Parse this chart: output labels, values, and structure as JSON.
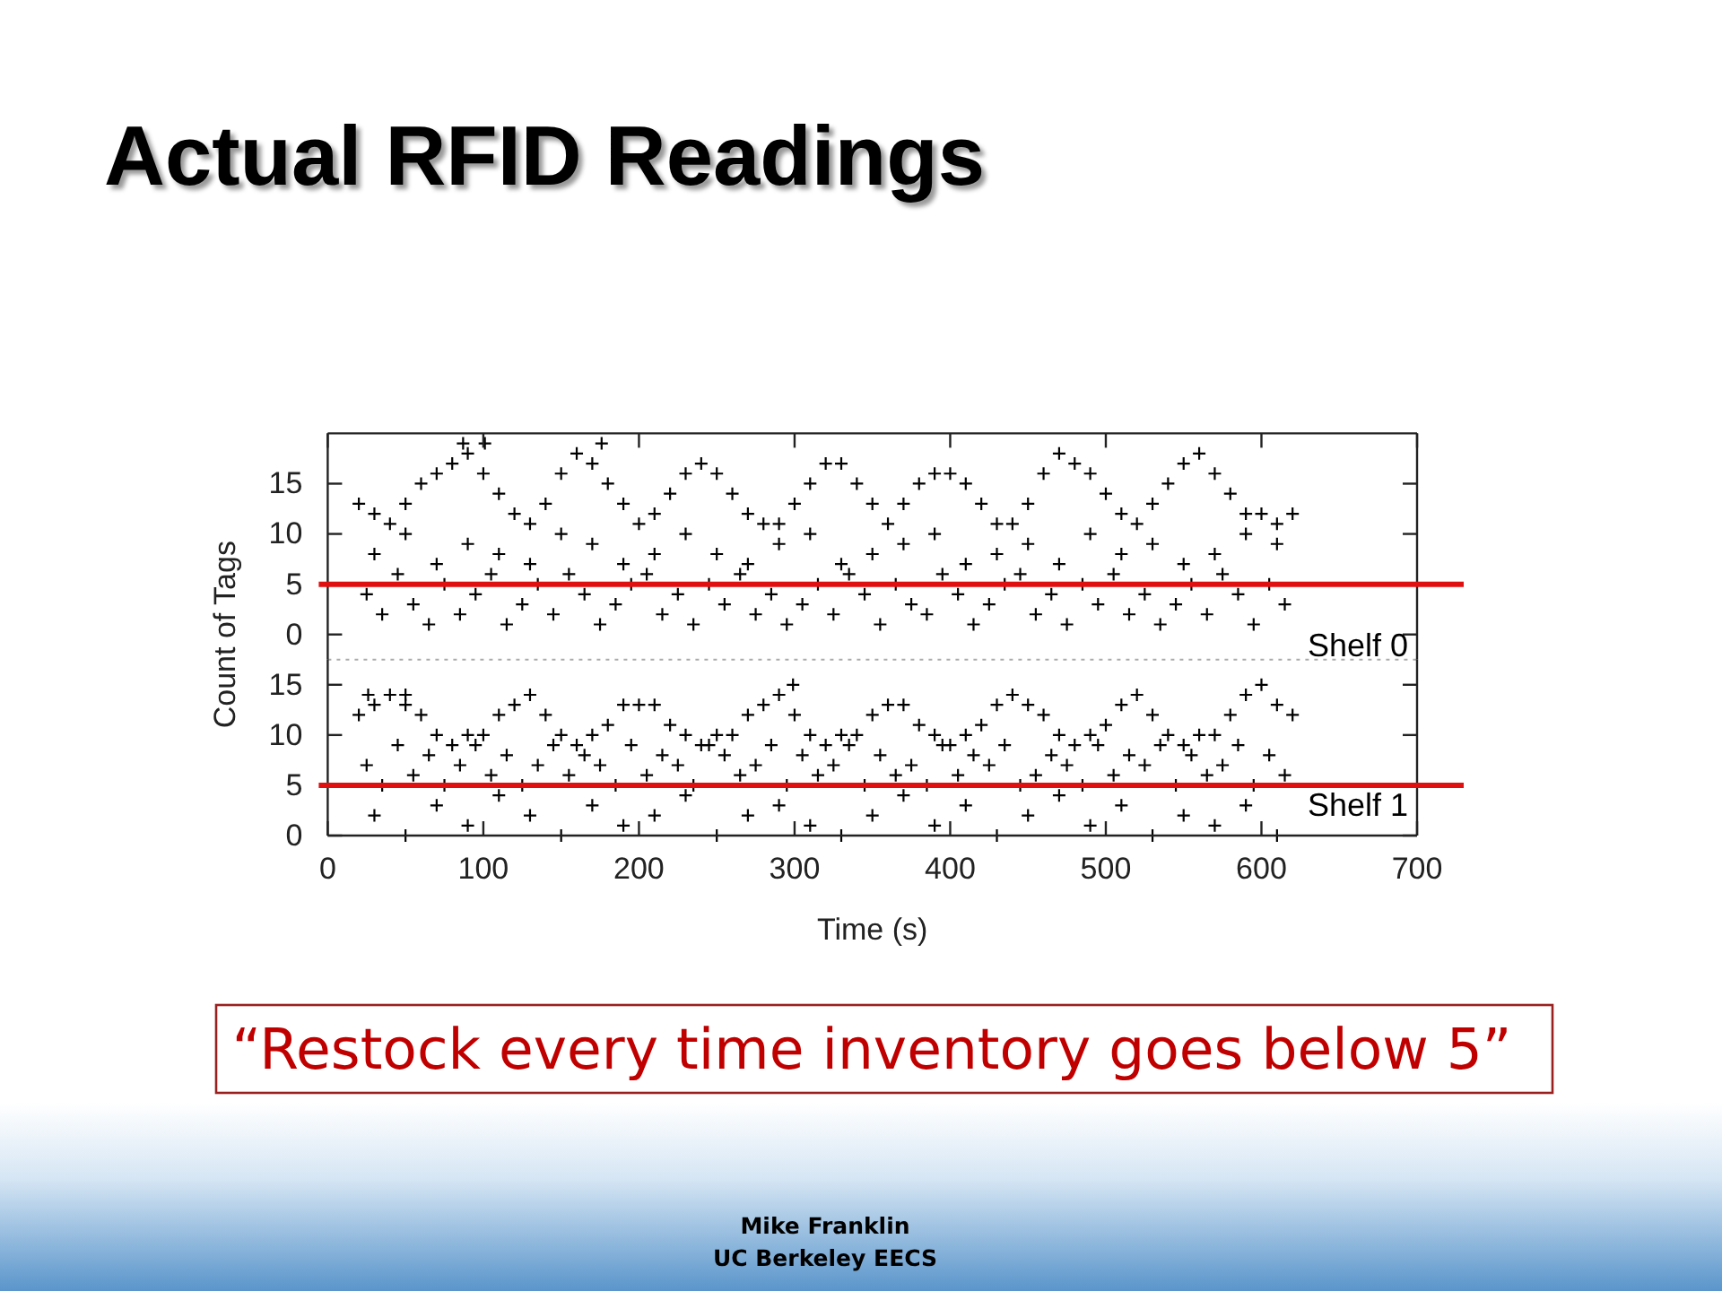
{
  "chart_data": [
    {
      "type": "scatter",
      "title": "Actual RFID Readings",
      "ylabel": "Count of Tags",
      "xlim": [
        0,
        700
      ],
      "xticks": [
        0,
        100,
        200,
        300,
        400,
        500,
        600,
        700
      ],
      "ylim": [
        -2.5,
        20
      ],
      "yticks": [
        0,
        5,
        10,
        15
      ],
      "tick_labels": "y",
      "marker": "cross",
      "series": [
        {
          "name": "Shelf 0",
          "color": "#000000",
          "x": [
            20,
            30,
            40,
            50,
            60,
            70,
            80,
            90,
            100,
            110,
            120,
            130,
            140,
            150,
            160,
            170,
            180,
            190,
            200,
            210,
            220,
            230,
            240,
            250,
            260,
            270,
            280,
            290,
            300,
            310,
            320,
            330,
            340,
            350,
            360,
            370,
            380,
            390,
            400,
            410,
            420,
            430,
            440,
            450,
            460,
            470,
            480,
            490,
            500,
            510,
            520,
            530,
            540,
            550,
            560,
            570,
            580,
            590,
            600,
            610,
            620,
            25,
            35,
            45,
            55,
            65,
            75,
            85,
            95,
            105,
            115,
            125,
            135,
            145,
            155,
            165,
            175,
            185,
            195,
            205,
            215,
            225,
            235,
            245,
            255,
            265,
            275,
            285,
            295,
            305,
            315,
            325,
            335,
            345,
            355,
            365,
            375,
            385,
            395,
            405,
            415,
            425,
            435,
            445,
            455,
            465,
            475,
            485,
            495,
            505,
            515,
            525,
            535,
            545,
            555,
            565,
            575,
            585,
            595,
            605,
            615,
            30,
            50,
            70,
            90,
            110,
            130,
            150,
            170,
            190,
            210,
            230,
            250,
            270,
            290,
            310,
            330,
            350,
            370,
            390,
            410,
            430,
            450,
            470,
            490,
            510,
            530,
            550,
            570,
            590,
            610,
            87,
            101,
            176
          ],
          "values": [
            13,
            12,
            11,
            13,
            15,
            16,
            17,
            18,
            16,
            14,
            12,
            11,
            13,
            16,
            18,
            17,
            15,
            13,
            11,
            12,
            14,
            16,
            17,
            16,
            14,
            12,
            11,
            11,
            13,
            15,
            17,
            17,
            15,
            13,
            11,
            13,
            15,
            16,
            16,
            15,
            13,
            11,
            11,
            13,
            16,
            18,
            17,
            16,
            14,
            12,
            11,
            13,
            15,
            17,
            18,
            16,
            14,
            12,
            12,
            11,
            12,
            4,
            2,
            6,
            3,
            1,
            5,
            2,
            4,
            6,
            1,
            3,
            5,
            2,
            6,
            4,
            1,
            3,
            5,
            6,
            2,
            4,
            1,
            5,
            3,
            6,
            2,
            4,
            1,
            3,
            5,
            2,
            6,
            4,
            1,
            5,
            3,
            2,
            6,
            4,
            1,
            3,
            5,
            6,
            2,
            4,
            1,
            5,
            3,
            6,
            2,
            4,
            1,
            3,
            5,
            2,
            6,
            4,
            1,
            5,
            3,
            8,
            10,
            7,
            9,
            8,
            7,
            10,
            9,
            7,
            8,
            10,
            8,
            7,
            9,
            10,
            7,
            8,
            9,
            10,
            7,
            8,
            9,
            7,
            10,
            8,
            9,
            7,
            8,
            10,
            9,
            19,
            19,
            19
          ]
        }
      ],
      "ref_lines": [
        {
          "axis": "y",
          "value": 5,
          "color": "#e01010"
        }
      ]
    },
    {
      "type": "scatter",
      "xlabel": "Time (s)",
      "xlim": [
        0,
        700
      ],
      "xticks": [
        0,
        100,
        200,
        300,
        400,
        500,
        600,
        700
      ],
      "ylim": [
        0,
        17.5
      ],
      "yticks": [
        0,
        5,
        10,
        15
      ],
      "marker": "cross",
      "series": [
        {
          "name": "Shelf 1",
          "color": "#000000",
          "x": [
            20,
            30,
            40,
            50,
            60,
            70,
            80,
            90,
            100,
            110,
            120,
            130,
            140,
            150,
            160,
            170,
            180,
            190,
            200,
            210,
            220,
            230,
            240,
            250,
            260,
            270,
            280,
            290,
            300,
            310,
            320,
            330,
            340,
            350,
            360,
            370,
            380,
            390,
            400,
            410,
            420,
            430,
            440,
            450,
            460,
            470,
            480,
            490,
            500,
            510,
            520,
            530,
            540,
            550,
            560,
            570,
            580,
            590,
            600,
            610,
            620,
            25,
            35,
            45,
            55,
            65,
            75,
            85,
            95,
            105,
            115,
            125,
            135,
            145,
            155,
            165,
            175,
            185,
            195,
            205,
            215,
            225,
            235,
            245,
            255,
            265,
            275,
            285,
            295,
            305,
            315,
            325,
            335,
            345,
            355,
            365,
            375,
            385,
            395,
            405,
            415,
            425,
            435,
            445,
            455,
            465,
            475,
            485,
            495,
            505,
            515,
            525,
            535,
            545,
            555,
            565,
            575,
            585,
            595,
            605,
            615,
            30,
            50,
            70,
            90,
            110,
            130,
            150,
            170,
            190,
            210,
            230,
            250,
            270,
            290,
            310,
            330,
            350,
            370,
            390,
            410,
            430,
            450,
            470,
            490,
            510,
            530,
            550,
            570,
            590,
            610,
            26,
            50,
            299
          ],
          "values": [
            12,
            13,
            14,
            13,
            12,
            10,
            9,
            10,
            10,
            12,
            13,
            14,
            12,
            10,
            9,
            10,
            11,
            13,
            13,
            13,
            11,
            10,
            9,
            10,
            10,
            12,
            13,
            14,
            12,
            10,
            9,
            10,
            10,
            12,
            13,
            13,
            11,
            10,
            9,
            10,
            11,
            13,
            14,
            13,
            12,
            10,
            9,
            10,
            11,
            13,
            14,
            12,
            10,
            9,
            10,
            10,
            12,
            14,
            15,
            13,
            12,
            7,
            5,
            9,
            6,
            8,
            5,
            7,
            9,
            6,
            8,
            5,
            7,
            9,
            6,
            8,
            7,
            5,
            9,
            6,
            8,
            7,
            5,
            9,
            8,
            6,
            7,
            9,
            5,
            8,
            6,
            7,
            9,
            5,
            8,
            6,
            7,
            5,
            9,
            6,
            8,
            7,
            9,
            5,
            6,
            8,
            7,
            5,
            9,
            6,
            8,
            7,
            9,
            5,
            8,
            6,
            7,
            9,
            5,
            8,
            6,
            2,
            0,
            3,
            1,
            4,
            2,
            0,
            3,
            1,
            2,
            4,
            0,
            2,
            3,
            1,
            0,
            2,
            4,
            1,
            3,
            0,
            2,
            4,
            1,
            3,
            0,
            2,
            1,
            3,
            0,
            14,
            14,
            15
          ]
        }
      ],
      "ref_lines": [
        {
          "axis": "y",
          "value": 5,
          "color": "#e01010"
        }
      ],
      "annotations": [
        "“Restock every time inventory goes below 5”",
        "Mike Franklin",
        "UC Berkeley EECS"
      ]
    }
  ]
}
